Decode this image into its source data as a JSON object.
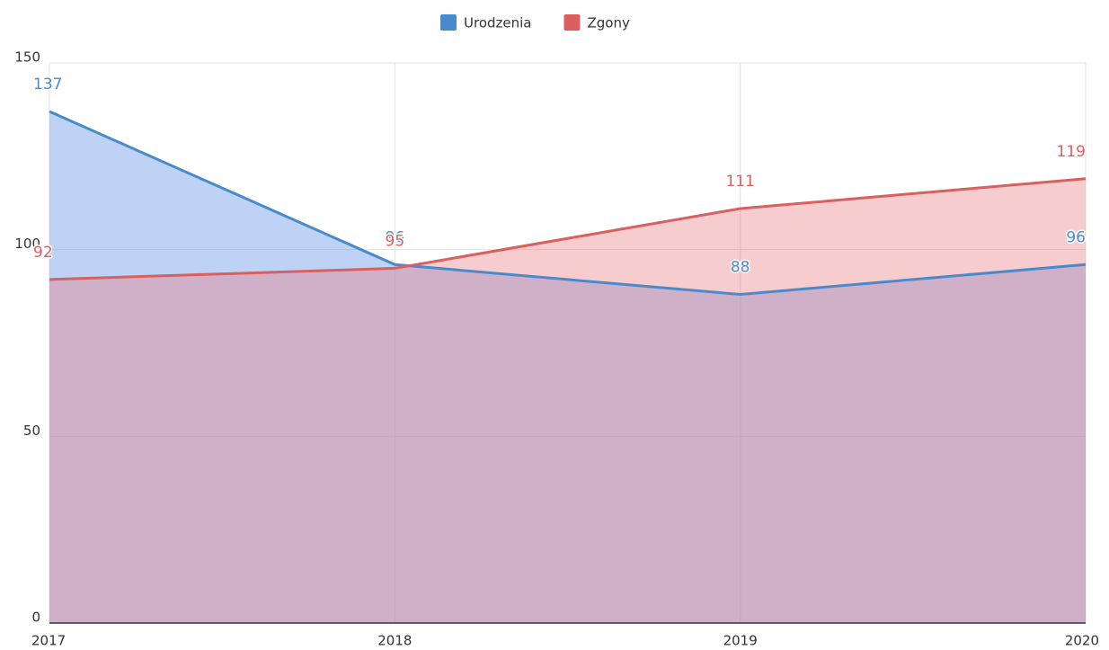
{
  "chart_data": {
    "type": "area",
    "categories": [
      "2017",
      "2018",
      "2019",
      "2020"
    ],
    "series": [
      {
        "name": "Urodzenia",
        "color": "#4a8acb",
        "values": [
          137,
          96,
          88,
          96
        ]
      },
      {
        "name": "Zgony",
        "color": "#d9605f",
        "values": [
          92,
          95,
          111,
          119
        ]
      }
    ],
    "ylim": [
      0,
      150
    ],
    "yticks": [
      0,
      50,
      100,
      150
    ],
    "grid": true,
    "legend": "top"
  }
}
